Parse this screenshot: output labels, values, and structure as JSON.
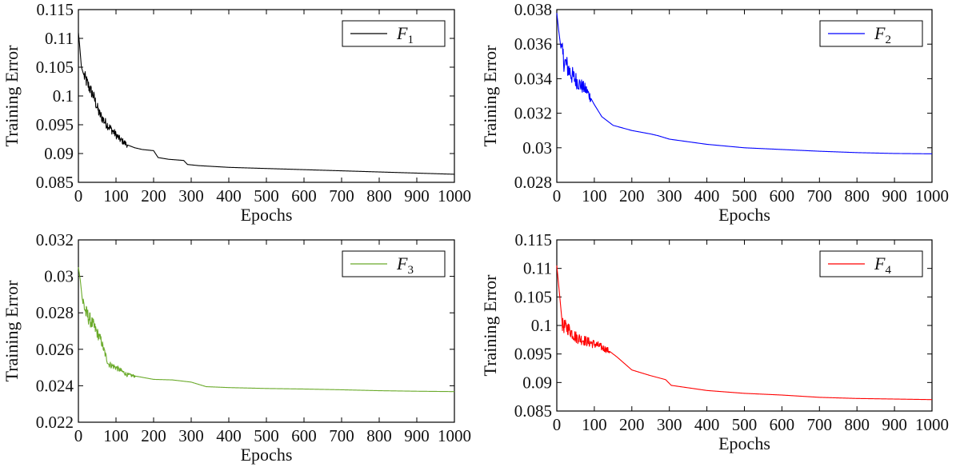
{
  "chart_data": [
    {
      "type": "line",
      "xlabel": "Epochs",
      "ylabel": "Training Error",
      "xlim": [
        0,
        1000
      ],
      "ylim": [
        0.085,
        0.115
      ],
      "xticks": [
        "0",
        "100",
        "200",
        "300",
        "400",
        "500",
        "600",
        "700",
        "800",
        "900",
        "1000"
      ],
      "yticks": [
        "0.085",
        "0.09",
        "0.095",
        "0.1",
        "0.105",
        "0.11",
        "0.115"
      ],
      "grid": false,
      "legend_position": "top-right",
      "series": [
        {
          "name": "F1",
          "legend_main": "F",
          "legend_sub": "1",
          "color": "#000000",
          "points": [
            [
              0,
              0.111
            ],
            [
              3,
              0.109
            ],
            [
              8,
              0.105
            ],
            [
              15,
              0.1035
            ],
            [
              25,
              0.102
            ],
            [
              40,
              0.1
            ],
            [
              55,
              0.097
            ],
            [
              70,
              0.0955
            ],
            [
              90,
              0.094
            ],
            [
              110,
              0.0925
            ],
            [
              130,
              0.0915
            ],
            [
              150,
              0.091
            ],
            [
              170,
              0.0907
            ],
            [
              200,
              0.0905
            ],
            [
              212,
              0.0893
            ],
            [
              240,
              0.089
            ],
            [
              280,
              0.0888
            ],
            [
              290,
              0.0881
            ],
            [
              320,
              0.0879
            ],
            [
              400,
              0.0876
            ],
            [
              500,
              0.0874
            ],
            [
              600,
              0.0872
            ],
            [
              700,
              0.087
            ],
            [
              800,
              0.0868
            ],
            [
              900,
              0.0866
            ],
            [
              1000,
              0.0864
            ]
          ],
          "noise": [
            [
              15,
              130,
              0.0012
            ]
          ]
        }
      ]
    },
    {
      "type": "line",
      "xlabel": "Epochs",
      "ylabel": "Training Error",
      "xlim": [
        0,
        1000
      ],
      "ylim": [
        0.028,
        0.038
      ],
      "xticks": [
        "0",
        "100",
        "200",
        "300",
        "400",
        "500",
        "600",
        "700",
        "800",
        "900",
        "1000"
      ],
      "yticks": [
        "0.028",
        "0.03",
        "0.032",
        "0.034",
        "0.036",
        "0.038"
      ],
      "grid": false,
      "legend_position": "top-right",
      "series": [
        {
          "name": "F2",
          "legend_main": "F",
          "legend_sub": "2",
          "color": "#0000ff",
          "points": [
            [
              0,
              0.0378
            ],
            [
              5,
              0.0368
            ],
            [
              12,
              0.0356
            ],
            [
              20,
              0.035
            ],
            [
              40,
              0.0342
            ],
            [
              60,
              0.0337
            ],
            [
              80,
              0.0333
            ],
            [
              100,
              0.0325
            ],
            [
              120,
              0.0318
            ],
            [
              150,
              0.0313
            ],
            [
              200,
              0.031
            ],
            [
              250,
              0.0308
            ],
            [
              270,
              0.0307
            ],
            [
              300,
              0.0305
            ],
            [
              400,
              0.0302
            ],
            [
              500,
              0.03
            ],
            [
              600,
              0.0299
            ],
            [
              700,
              0.0298
            ],
            [
              800,
              0.02972
            ],
            [
              900,
              0.02967
            ],
            [
              1000,
              0.02965
            ]
          ],
          "noise": [
            [
              12,
              90,
              0.0007
            ]
          ]
        }
      ]
    },
    {
      "type": "line",
      "xlabel": "Epochs",
      "ylabel": "Training Error",
      "xlim": [
        0,
        1000
      ],
      "ylim": [
        0.022,
        0.032
      ],
      "xticks": [
        "0",
        "100",
        "200",
        "300",
        "400",
        "500",
        "600",
        "700",
        "800",
        "900",
        "1000"
      ],
      "yticks": [
        "0.022",
        "0.024",
        "0.026",
        "0.028",
        "0.03",
        "0.032"
      ],
      "grid": false,
      "legend_position": "top-right",
      "series": [
        {
          "name": "F3",
          "legend_main": "F",
          "legend_sub": "3",
          "color": "#6aaa2a",
          "points": [
            [
              0,
              0.0305
            ],
            [
              5,
              0.0298
            ],
            [
              10,
              0.0288
            ],
            [
              20,
              0.028
            ],
            [
              40,
              0.0273
            ],
            [
              60,
              0.0265
            ],
            [
              70,
              0.0258
            ],
            [
              80,
              0.0252
            ],
            [
              100,
              0.025
            ],
            [
              130,
              0.0246
            ],
            [
              160,
              0.0245
            ],
            [
              200,
              0.02435
            ],
            [
              250,
              0.02432
            ],
            [
              300,
              0.0242
            ],
            [
              340,
              0.02395
            ],
            [
              400,
              0.0239
            ],
            [
              500,
              0.02385
            ],
            [
              600,
              0.02382
            ],
            [
              700,
              0.02378
            ],
            [
              800,
              0.02373
            ],
            [
              900,
              0.0237
            ],
            [
              1000,
              0.02368
            ]
          ],
          "noise": [
            [
              10,
              70,
              0.0005
            ],
            [
              70,
              150,
              0.0002
            ]
          ]
        }
      ]
    },
    {
      "type": "line",
      "xlabel": "Epochs",
      "ylabel": "Training Error",
      "xlim": [
        0,
        1000
      ],
      "ylim": [
        0.085,
        0.115
      ],
      "xticks": [
        "0",
        "100",
        "200",
        "300",
        "400",
        "500",
        "600",
        "700",
        "800",
        "900",
        "1000"
      ],
      "yticks": [
        "0.085",
        "0.09",
        "0.095",
        "0.1",
        "0.105",
        "0.11",
        "0.115"
      ],
      "grid": false,
      "legend_position": "top-right",
      "series": [
        {
          "name": "F4",
          "legend_main": "F",
          "legend_sub": "4",
          "color": "#ff0000",
          "points": [
            [
              0,
              0.1105
            ],
            [
              8,
              0.105
            ],
            [
              15,
              0.1
            ],
            [
              30,
              0.0995
            ],
            [
              50,
              0.098
            ],
            [
              80,
              0.0972
            ],
            [
              110,
              0.0965
            ],
            [
              140,
              0.0955
            ],
            [
              160,
              0.0945
            ],
            [
              200,
              0.0922
            ],
            [
              250,
              0.0912
            ],
            [
              290,
              0.0905
            ],
            [
              305,
              0.0895
            ],
            [
              400,
              0.0886
            ],
            [
              500,
              0.0881
            ],
            [
              600,
              0.0878
            ],
            [
              700,
              0.0874
            ],
            [
              800,
              0.0872
            ],
            [
              900,
              0.0871
            ],
            [
              1000,
              0.087
            ]
          ],
          "noise": [
            [
              15,
              140,
              0.0013
            ]
          ]
        }
      ]
    }
  ]
}
